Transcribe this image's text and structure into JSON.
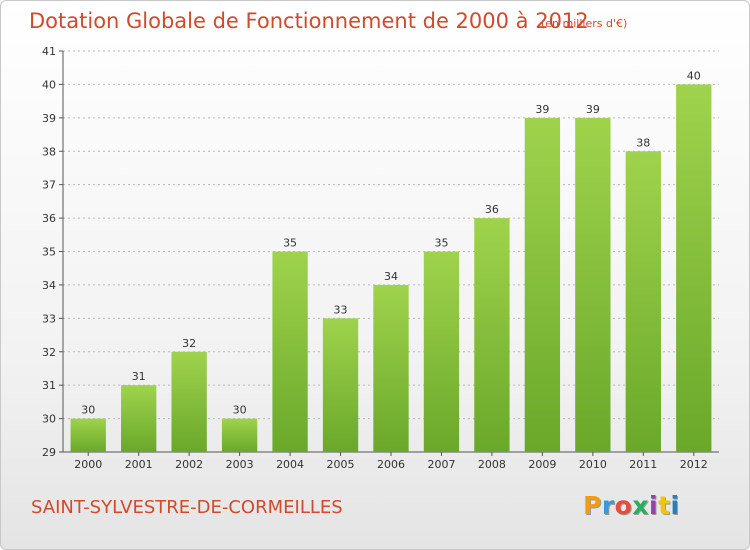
{
  "header": {
    "title": "Dotation Globale de Fonctionnement de 2000 à 2012",
    "subtitle": "(en milliers d'€)"
  },
  "commune": "SAINT-SYLVESTRE-DE-CORMEILLES",
  "logo": {
    "text": "Proxiti",
    "colors": [
      "#f39c12",
      "#3a9ad9",
      "#e74c3c",
      "#27ae60",
      "#8e44ad",
      "#f1c40f",
      "#2980b9"
    ]
  },
  "colors": {
    "bar_top": "#9fd34c",
    "bar_bottom": "#6aa82a",
    "title": "#d04a2b",
    "grid": "#b8b8b8"
  },
  "chart_data": {
    "type": "bar",
    "categories": [
      "2000",
      "2001",
      "2002",
      "2003",
      "2004",
      "2005",
      "2006",
      "2007",
      "2008",
      "2009",
      "2010",
      "2011",
      "2012"
    ],
    "values": [
      30,
      31,
      32,
      30,
      35,
      33,
      34,
      35,
      36,
      39,
      39,
      38,
      40
    ],
    "data_labels": [
      "30",
      "31",
      "32",
      "30",
      "35",
      "33",
      "34",
      "35",
      "36",
      "39",
      "39",
      "38",
      "40"
    ],
    "yticks": [
      "29",
      "30",
      "31",
      "32",
      "33",
      "34",
      "35",
      "36",
      "37",
      "38",
      "39",
      "40",
      "41"
    ],
    "ylim": [
      29,
      41
    ],
    "grid": true,
    "title": "Dotation Globale de Fonctionnement de 2000 à 2012",
    "xlabel": "",
    "ylabel": ""
  }
}
